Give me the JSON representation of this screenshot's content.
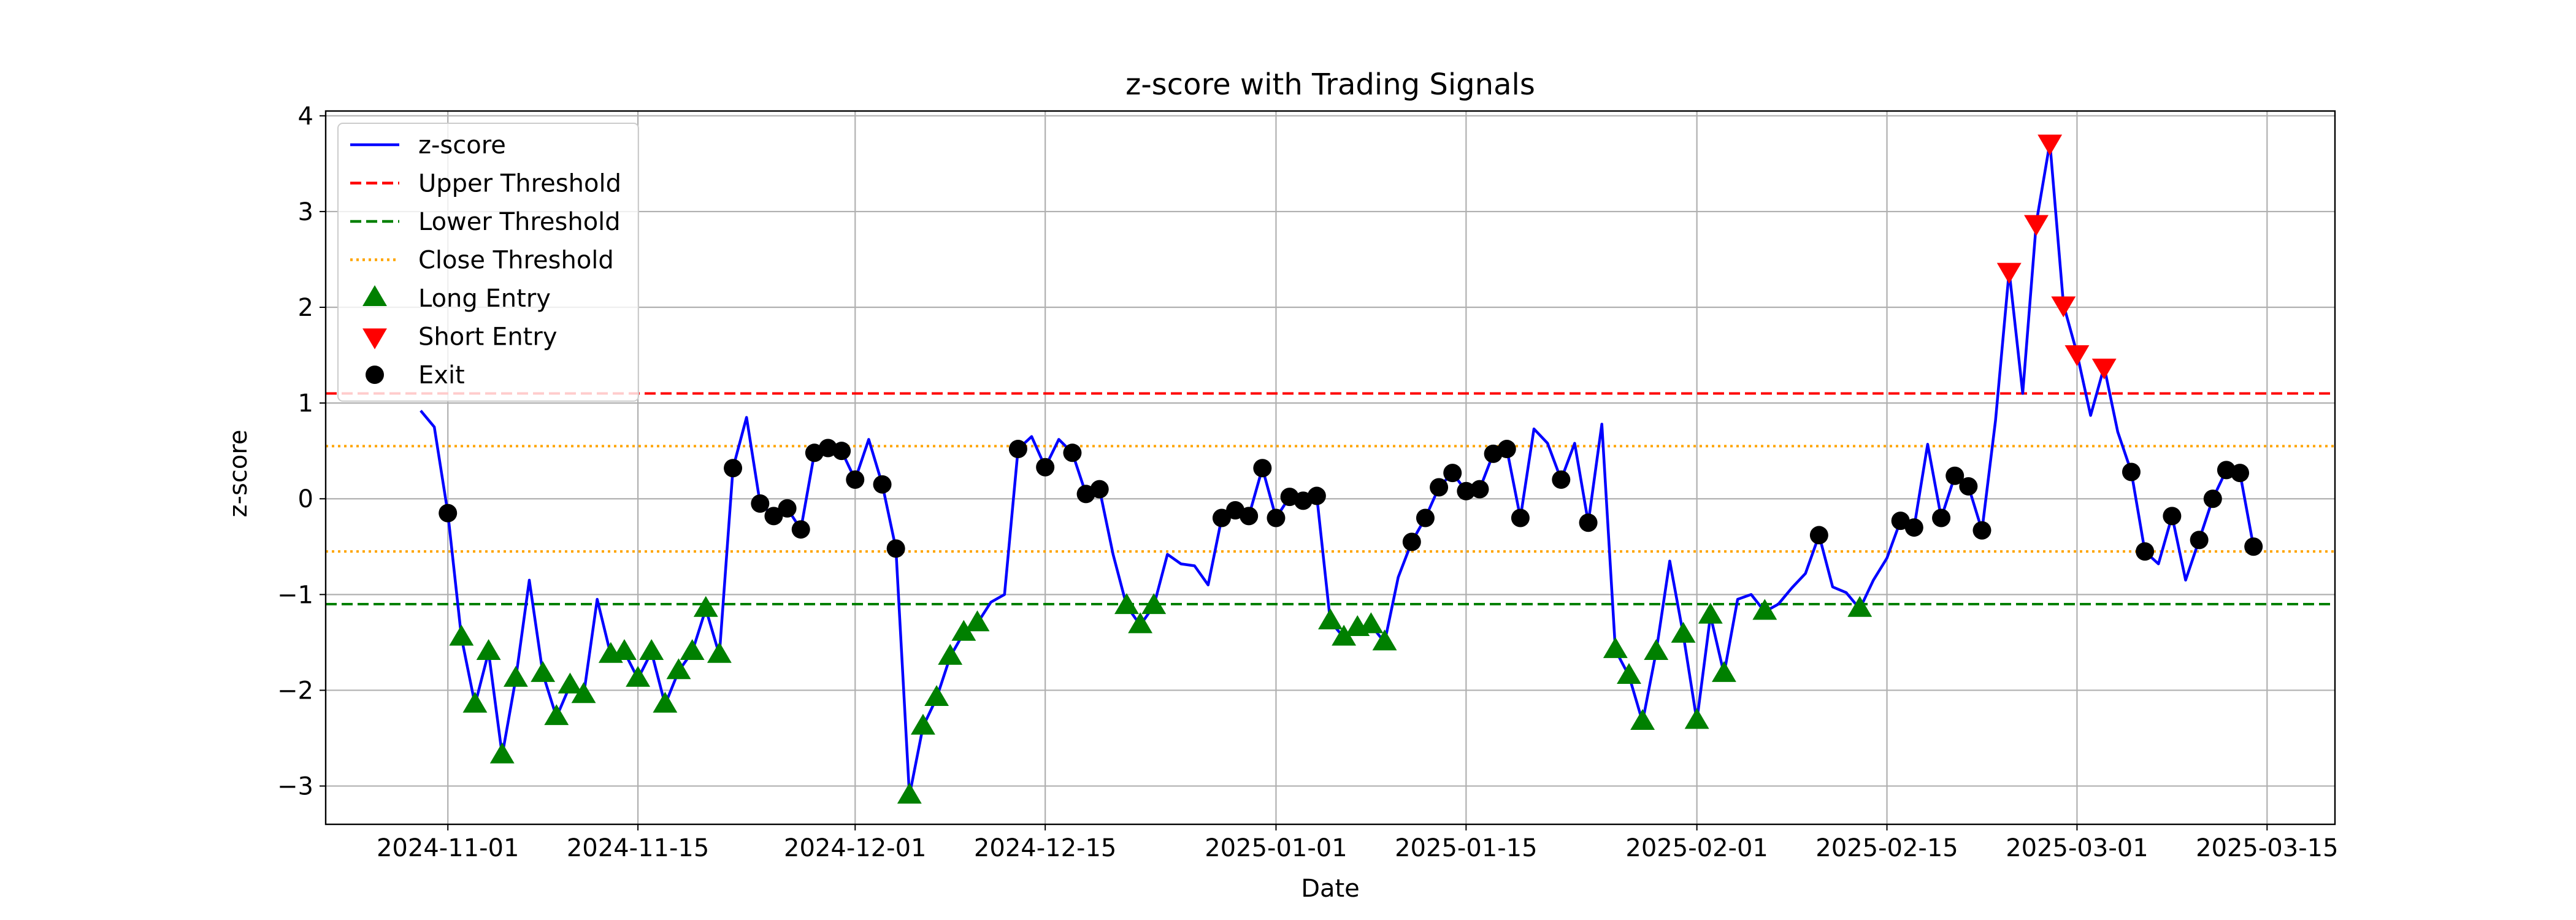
{
  "chart_data": {
    "type": "line",
    "title": "z-score with Trading Signals",
    "xlabel": "Date",
    "ylabel": "z-score",
    "x_range": [
      "2024-10-23",
      "2025-03-20"
    ],
    "ylim": [
      -3.4,
      4.05
    ],
    "x_ticks": [
      "2024-11-01",
      "2024-11-15",
      "2024-12-01",
      "2024-12-15",
      "2025-01-01",
      "2025-01-15",
      "2025-02-01",
      "2025-02-15",
      "2025-03-01",
      "2025-03-15"
    ],
    "y_ticks": [
      -3,
      -2,
      -1,
      0,
      1,
      2,
      3,
      4
    ],
    "y_tick_labels": [
      "−3",
      "−2",
      "−1",
      "0",
      "1",
      "2",
      "3",
      "4"
    ],
    "grid": true,
    "legend_position": "top-left",
    "series": [
      {
        "name": "z-score",
        "color": "#0000ff",
        "style": "solid",
        "points": [
          [
            "2024-10-30",
            0.92
          ],
          [
            "2024-10-31",
            0.75
          ],
          [
            "2024-11-01",
            -0.15
          ],
          [
            "2024-11-02",
            -1.45
          ],
          [
            "2024-11-03",
            -2.15
          ],
          [
            "2024-11-04",
            -1.6
          ],
          [
            "2024-11-05",
            -2.68
          ],
          [
            "2024-11-06",
            -1.88
          ],
          [
            "2024-11-07",
            -0.85
          ],
          [
            "2024-11-08",
            -1.83
          ],
          [
            "2024-11-09",
            -2.28
          ],
          [
            "2024-11-10",
            -1.95
          ],
          [
            "2024-11-11",
            -2.05
          ],
          [
            "2024-11-12",
            -1.05
          ],
          [
            "2024-11-13",
            -1.63
          ],
          [
            "2024-11-14",
            -1.6
          ],
          [
            "2024-11-15",
            -1.88
          ],
          [
            "2024-11-16",
            -1.6
          ],
          [
            "2024-11-17",
            -2.15
          ],
          [
            "2024-11-18",
            -1.8
          ],
          [
            "2024-11-19",
            -1.6
          ],
          [
            "2024-11-20",
            -1.15
          ],
          [
            "2024-11-21",
            -1.63
          ],
          [
            "2024-11-22",
            0.32
          ],
          [
            "2024-11-23",
            0.85
          ],
          [
            "2024-11-24",
            -0.05
          ],
          [
            "2024-11-25",
            -0.18
          ],
          [
            "2024-11-26",
            -0.1
          ],
          [
            "2024-11-27",
            -0.32
          ],
          [
            "2024-11-28",
            0.48
          ],
          [
            "2024-11-29",
            0.53
          ],
          [
            "2024-11-30",
            0.5
          ],
          [
            "2024-12-01",
            0.2
          ],
          [
            "2024-12-02",
            0.62
          ],
          [
            "2024-12-03",
            0.15
          ],
          [
            "2024-12-04",
            -0.52
          ],
          [
            "2024-12-05",
            -3.1
          ],
          [
            "2024-12-06",
            -2.38
          ],
          [
            "2024-12-07",
            -2.08
          ],
          [
            "2024-12-08",
            -1.65
          ],
          [
            "2024-12-09",
            -1.4
          ],
          [
            "2024-12-10",
            -1.3
          ],
          [
            "2024-12-11",
            -1.08
          ],
          [
            "2024-12-12",
            -1.0
          ],
          [
            "2024-12-13",
            0.52
          ],
          [
            "2024-12-14",
            0.65
          ],
          [
            "2024-12-15",
            0.33
          ],
          [
            "2024-12-16",
            0.62
          ],
          [
            "2024-12-17",
            0.48
          ],
          [
            "2024-12-18",
            0.05
          ],
          [
            "2024-12-19",
            0.1
          ],
          [
            "2024-12-20",
            -0.58
          ],
          [
            "2024-12-21",
            -1.12
          ],
          [
            "2024-12-22",
            -1.32
          ],
          [
            "2024-12-23",
            -1.12
          ],
          [
            "2024-12-24",
            -0.58
          ],
          [
            "2024-12-25",
            -0.68
          ],
          [
            "2024-12-26",
            -0.7
          ],
          [
            "2024-12-27",
            -0.9
          ],
          [
            "2024-12-28",
            -0.2
          ],
          [
            "2024-12-29",
            -0.12
          ],
          [
            "2024-12-30",
            -0.18
          ],
          [
            "2024-12-31",
            0.32
          ],
          [
            "2025-01-01",
            -0.2
          ],
          [
            "2025-01-02",
            0.02
          ],
          [
            "2025-01-03",
            -0.02
          ],
          [
            "2025-01-04",
            0.03
          ],
          [
            "2025-01-05",
            -1.28
          ],
          [
            "2025-01-06",
            -1.45
          ],
          [
            "2025-01-07",
            -1.35
          ],
          [
            "2025-01-08",
            -1.32
          ],
          [
            "2025-01-09",
            -1.5
          ],
          [
            "2025-01-10",
            -0.82
          ],
          [
            "2025-01-11",
            -0.45
          ],
          [
            "2025-01-12",
            -0.2
          ],
          [
            "2025-01-13",
            0.12
          ],
          [
            "2025-01-14",
            0.27
          ],
          [
            "2025-01-15",
            0.08
          ],
          [
            "2025-01-16",
            0.1
          ],
          [
            "2025-01-17",
            0.47
          ],
          [
            "2025-01-18",
            0.52
          ],
          [
            "2025-01-19",
            -0.2
          ],
          [
            "2025-01-20",
            0.73
          ],
          [
            "2025-01-21",
            0.58
          ],
          [
            "2025-01-22",
            0.2
          ],
          [
            "2025-01-23",
            0.58
          ],
          [
            "2025-01-24",
            -0.25
          ],
          [
            "2025-01-25",
            0.78
          ],
          [
            "2025-01-26",
            -1.58
          ],
          [
            "2025-01-27",
            -1.85
          ],
          [
            "2025-01-28",
            -2.33
          ],
          [
            "2025-01-29",
            -1.6
          ],
          [
            "2025-01-30",
            -0.65
          ],
          [
            "2025-01-31",
            -1.42
          ],
          [
            "2025-02-01",
            -2.32
          ],
          [
            "2025-02-02",
            -1.22
          ],
          [
            "2025-02-03",
            -1.83
          ],
          [
            "2025-02-04",
            -1.05
          ],
          [
            "2025-02-05",
            -1.0
          ],
          [
            "2025-02-06",
            -1.18
          ],
          [
            "2025-02-07",
            -1.1
          ],
          [
            "2025-02-08",
            -0.93
          ],
          [
            "2025-02-09",
            -0.78
          ],
          [
            "2025-02-10",
            -0.38
          ],
          [
            "2025-02-11",
            -0.92
          ],
          [
            "2025-02-12",
            -0.98
          ],
          [
            "2025-02-13",
            -1.15
          ],
          [
            "2025-02-14",
            -0.85
          ],
          [
            "2025-02-15",
            -0.62
          ],
          [
            "2025-02-16",
            -0.23
          ],
          [
            "2025-02-17",
            -0.3
          ],
          [
            "2025-02-18",
            0.57
          ],
          [
            "2025-02-19",
            -0.2
          ],
          [
            "2025-02-20",
            0.24
          ],
          [
            "2025-02-21",
            0.13
          ],
          [
            "2025-02-22",
            -0.33
          ],
          [
            "2025-02-23",
            0.82
          ],
          [
            "2025-02-24",
            2.38
          ],
          [
            "2025-02-25",
            1.1
          ],
          [
            "2025-02-26",
            2.88
          ],
          [
            "2025-02-27",
            3.72
          ],
          [
            "2025-02-28",
            2.03
          ],
          [
            "2025-03-01",
            1.52
          ],
          [
            "2025-03-02",
            0.87
          ],
          [
            "2025-03-03",
            1.38
          ],
          [
            "2025-03-04",
            0.7
          ],
          [
            "2025-03-05",
            0.28
          ],
          [
            "2025-03-06",
            -0.55
          ],
          [
            "2025-03-07",
            -0.68
          ],
          [
            "2025-03-08",
            -0.18
          ],
          [
            "2025-03-09",
            -0.85
          ],
          [
            "2025-03-10",
            -0.43
          ],
          [
            "2025-03-11",
            0.0
          ],
          [
            "2025-03-12",
            0.3
          ],
          [
            "2025-03-13",
            0.27
          ],
          [
            "2025-03-14",
            -0.5
          ]
        ]
      },
      {
        "name": "Upper Threshold",
        "color": "#ff0000",
        "style": "dashed",
        "value": 1.1
      },
      {
        "name": "Lower Threshold",
        "color": "#008000",
        "style": "dashed",
        "value": -1.1
      },
      {
        "name": "Close Threshold",
        "color": "#ffa500",
        "style": "dotted",
        "values": [
          0.55,
          -0.55
        ]
      },
      {
        "name": "Long Entry",
        "color": "#008000",
        "marker": "triangle-up",
        "points": [
          [
            "2024-11-02",
            -1.45
          ],
          [
            "2024-11-03",
            -2.15
          ],
          [
            "2024-11-04",
            -1.6
          ],
          [
            "2024-11-05",
            -2.68
          ],
          [
            "2024-11-06",
            -1.88
          ],
          [
            "2024-11-08",
            -1.83
          ],
          [
            "2024-11-09",
            -2.28
          ],
          [
            "2024-11-10",
            -1.95
          ],
          [
            "2024-11-11",
            -2.05
          ],
          [
            "2024-11-13",
            -1.63
          ],
          [
            "2024-11-14",
            -1.6
          ],
          [
            "2024-11-15",
            -1.88
          ],
          [
            "2024-11-16",
            -1.6
          ],
          [
            "2024-11-17",
            -2.15
          ],
          [
            "2024-11-18",
            -1.8
          ],
          [
            "2024-11-19",
            -1.6
          ],
          [
            "2024-11-20",
            -1.15
          ],
          [
            "2024-11-21",
            -1.63
          ],
          [
            "2024-12-05",
            -3.1
          ],
          [
            "2024-12-06",
            -2.38
          ],
          [
            "2024-12-07",
            -2.08
          ],
          [
            "2024-12-08",
            -1.65
          ],
          [
            "2024-12-09",
            -1.4
          ],
          [
            "2024-12-10",
            -1.3
          ],
          [
            "2024-12-21",
            -1.12
          ],
          [
            "2024-12-22",
            -1.32
          ],
          [
            "2024-12-23",
            -1.12
          ],
          [
            "2025-01-05",
            -1.28
          ],
          [
            "2025-01-06",
            -1.45
          ],
          [
            "2025-01-07",
            -1.35
          ],
          [
            "2025-01-08",
            -1.32
          ],
          [
            "2025-01-09",
            -1.5
          ],
          [
            "2025-01-26",
            -1.58
          ],
          [
            "2025-01-27",
            -1.85
          ],
          [
            "2025-01-28",
            -2.33
          ],
          [
            "2025-01-29",
            -1.6
          ],
          [
            "2025-01-31",
            -1.42
          ],
          [
            "2025-02-01",
            -2.32
          ],
          [
            "2025-02-02",
            -1.22
          ],
          [
            "2025-02-03",
            -1.83
          ],
          [
            "2025-02-06",
            -1.18
          ],
          [
            "2025-02-13",
            -1.15
          ]
        ]
      },
      {
        "name": "Short Entry",
        "color": "#ff0000",
        "marker": "triangle-down",
        "points": [
          [
            "2025-02-24",
            2.38
          ],
          [
            "2025-02-26",
            2.88
          ],
          [
            "2025-02-27",
            3.72
          ],
          [
            "2025-02-28",
            2.03
          ],
          [
            "2025-03-01",
            1.52
          ],
          [
            "2025-03-03",
            1.38
          ]
        ]
      },
      {
        "name": "Exit",
        "color": "#000000",
        "marker": "circle",
        "points": [
          [
            "2024-11-01",
            -0.15
          ],
          [
            "2024-11-22",
            0.32
          ],
          [
            "2024-11-24",
            -0.05
          ],
          [
            "2024-11-25",
            -0.18
          ],
          [
            "2024-11-26",
            -0.1
          ],
          [
            "2024-11-27",
            -0.32
          ],
          [
            "2024-11-28",
            0.48
          ],
          [
            "2024-11-29",
            0.53
          ],
          [
            "2024-11-30",
            0.5
          ],
          [
            "2024-12-01",
            0.2
          ],
          [
            "2024-12-03",
            0.15
          ],
          [
            "2024-12-04",
            -0.52
          ],
          [
            "2024-12-13",
            0.52
          ],
          [
            "2024-12-15",
            0.33
          ],
          [
            "2024-12-17",
            0.48
          ],
          [
            "2024-12-18",
            0.05
          ],
          [
            "2024-12-19",
            0.1
          ],
          [
            "2024-12-29",
            -0.12
          ],
          [
            "2024-12-28",
            -0.2
          ],
          [
            "2024-12-30",
            -0.18
          ],
          [
            "2024-12-31",
            0.32
          ],
          [
            "2025-01-01",
            -0.2
          ],
          [
            "2025-01-02",
            0.02
          ],
          [
            "2025-01-03",
            -0.02
          ],
          [
            "2025-01-04",
            0.03
          ],
          [
            "2025-01-11",
            -0.45
          ],
          [
            "2025-01-12",
            -0.2
          ],
          [
            "2025-01-13",
            0.12
          ],
          [
            "2025-01-14",
            0.27
          ],
          [
            "2025-01-15",
            0.08
          ],
          [
            "2025-01-16",
            0.1
          ],
          [
            "2025-01-17",
            0.47
          ],
          [
            "2025-01-18",
            0.52
          ],
          [
            "2025-01-19",
            -0.2
          ],
          [
            "2025-01-22",
            0.2
          ],
          [
            "2025-01-24",
            -0.25
          ],
          [
            "2025-02-10",
            -0.38
          ],
          [
            "2025-02-16",
            -0.23
          ],
          [
            "2025-02-17",
            -0.3
          ],
          [
            "2025-02-19",
            -0.2
          ],
          [
            "2025-02-20",
            0.24
          ],
          [
            "2025-02-21",
            0.13
          ],
          [
            "2025-02-22",
            -0.33
          ],
          [
            "2025-03-05",
            0.28
          ],
          [
            "2025-03-06",
            -0.55
          ],
          [
            "2025-03-08",
            -0.18
          ],
          [
            "2025-03-10",
            -0.43
          ],
          [
            "2025-03-11",
            0.0
          ],
          [
            "2025-03-12",
            0.3
          ],
          [
            "2025-03-13",
            0.27
          ],
          [
            "2025-03-14",
            -0.5
          ]
        ]
      }
    ],
    "legend": [
      {
        "label": "z-score",
        "kind": "line",
        "color": "#0000ff",
        "style": "solid"
      },
      {
        "label": "Upper Threshold",
        "kind": "line",
        "color": "#ff0000",
        "style": "dashed"
      },
      {
        "label": "Lower Threshold",
        "kind": "line",
        "color": "#008000",
        "style": "dashed"
      },
      {
        "label": "Close Threshold",
        "kind": "line",
        "color": "#ffa500",
        "style": "dotted"
      },
      {
        "label": "Long Entry",
        "kind": "marker",
        "color": "#008000",
        "marker": "triangle-up"
      },
      {
        "label": "Short Entry",
        "kind": "marker",
        "color": "#ff0000",
        "marker": "triangle-down"
      },
      {
        "label": "Exit",
        "kind": "marker",
        "color": "#000000",
        "marker": "circle"
      }
    ]
  }
}
